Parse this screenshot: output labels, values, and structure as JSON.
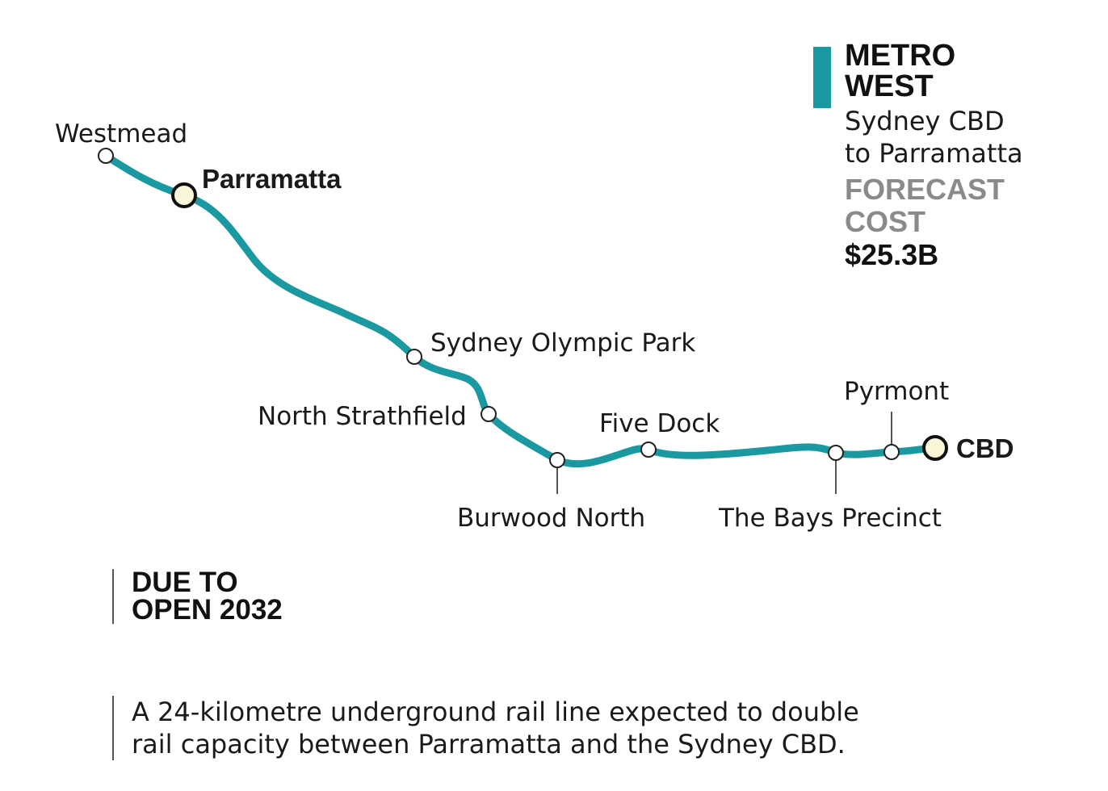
{
  "line": {
    "name_line1": "METRO",
    "name_line2": "WEST",
    "route_line1": "Sydney CBD",
    "route_line2": "to Parramatta",
    "color": "#1a9aa0"
  },
  "cost": {
    "label_line1": "FORECAST",
    "label_line2": "COST",
    "value": "$25.3B",
    "label_color": "#8a8a8a"
  },
  "stations": [
    {
      "name": "Westmead",
      "major": false
    },
    {
      "name": "Parramatta",
      "major": true
    },
    {
      "name": "Sydney Olympic Park",
      "major": false
    },
    {
      "name": "North Strathfield",
      "major": false
    },
    {
      "name": "Burwood North",
      "major": false
    },
    {
      "name": "Five Dock",
      "major": false
    },
    {
      "name": "The Bays Precinct",
      "major": false
    },
    {
      "name": "Pyrmont",
      "major": false
    },
    {
      "name": "CBD",
      "major": true
    }
  ],
  "opening": {
    "line1": "DUE TO",
    "line2": "OPEN 2032"
  },
  "description": {
    "line1": "A 24-kilometre underground rail line expected to double",
    "line2": "rail capacity between Parramatta and the Sydney CBD."
  },
  "major_station_fill": "#fbf6d8"
}
